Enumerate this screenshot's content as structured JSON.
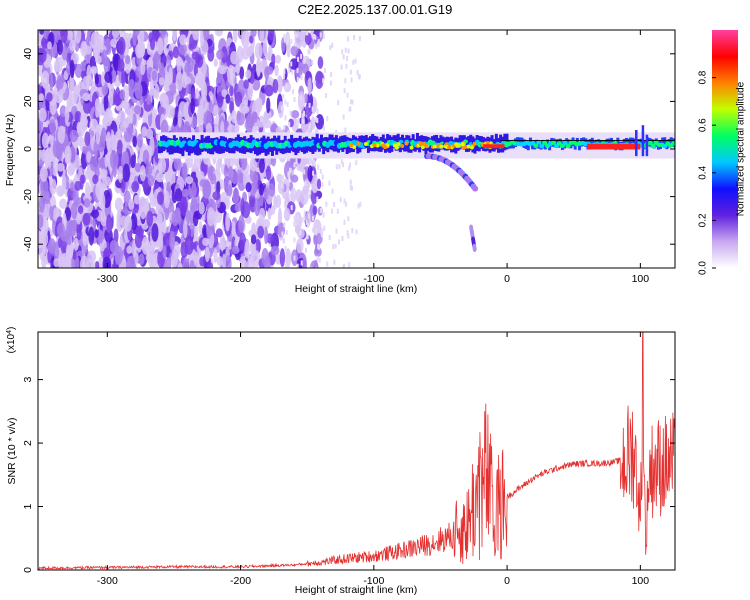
{
  "title": "C2E2.2025.137.00.01.G19",
  "colors": {
    "snr_line": "#e53030",
    "axis": "#000000",
    "background": "#ffffff",
    "colormap": [
      "#ffffff",
      "#c8a8f0",
      "#6020e0",
      "#1010ff",
      "#00c8ff",
      "#00ff60",
      "#c0ff00",
      "#ff8000",
      "#ff0000",
      "#ff40a0"
    ]
  },
  "chart_data": [
    {
      "type": "heatmap",
      "xlabel": "Height of straight line (km)",
      "ylabel": "Frequency (Hz)",
      "xlim": [
        -352,
        126
      ],
      "ylim": [
        -50,
        50
      ],
      "xticks": [
        -300,
        -200,
        -100,
        0,
        100
      ],
      "yticks": [
        -40,
        -20,
        0,
        20,
        40
      ],
      "colorbar": {
        "label": "Normalized spectral amplitude",
        "range": [
          0,
          1
        ],
        "ticks": [
          "0.0",
          "0.2",
          "0.4",
          "0.6",
          "0.8"
        ]
      },
      "features": {
        "noise_region_x": [
          -352,
          -160
        ],
        "main_band": {
          "x": [
            -262,
            126
          ],
          "freq": [
            -2,
            5
          ]
        },
        "branch": {
          "x": [
            -60,
            -24
          ],
          "freq": [
            -3,
            -42
          ]
        },
        "high_amplitude_segment": {
          "x": [
            60,
            100
          ],
          "freq": 1
        }
      },
      "grid": false,
      "legend": "right"
    },
    {
      "type": "line",
      "ylabel": "SNR (10 * v/v)",
      "yscale_label": "(x10",
      "yscale_exp": "4",
      "xlabel": "Height of straight line (km)",
      "xlim": [
        -352,
        126
      ],
      "ylim": [
        0,
        3.75
      ],
      "xticks": [
        -300,
        -200,
        -100,
        0,
        100
      ],
      "yticks": [
        0,
        1,
        2,
        3
      ],
      "series": [
        {
          "x": [
            -352,
            -300,
            -250,
            -200,
            -160,
            -140,
            -120,
            -100,
            -80,
            -60,
            -40,
            -30,
            -25,
            -20,
            -15,
            -12,
            -10,
            -5,
            0,
            10,
            20,
            30,
            40,
            50,
            60,
            70,
            80,
            90,
            95,
            98,
            100,
            102,
            104,
            106,
            110,
            115,
            120,
            126
          ],
          "y": [
            0.03,
            0.04,
            0.05,
            0.05,
            0.08,
            0.12,
            0.18,
            0.22,
            0.3,
            0.4,
            0.55,
            0.7,
            1.05,
            1.2,
            1.5,
            1.1,
            0.9,
            1.0,
            1.15,
            1.3,
            1.45,
            1.55,
            1.62,
            1.67,
            1.68,
            1.68,
            1.7,
            1.75,
            1.9,
            1.4,
            0.7,
            3.4,
            0.2,
            1.5,
            1.62,
            1.64,
            1.66,
            1.67
          ]
        }
      ],
      "grid": false
    }
  ]
}
